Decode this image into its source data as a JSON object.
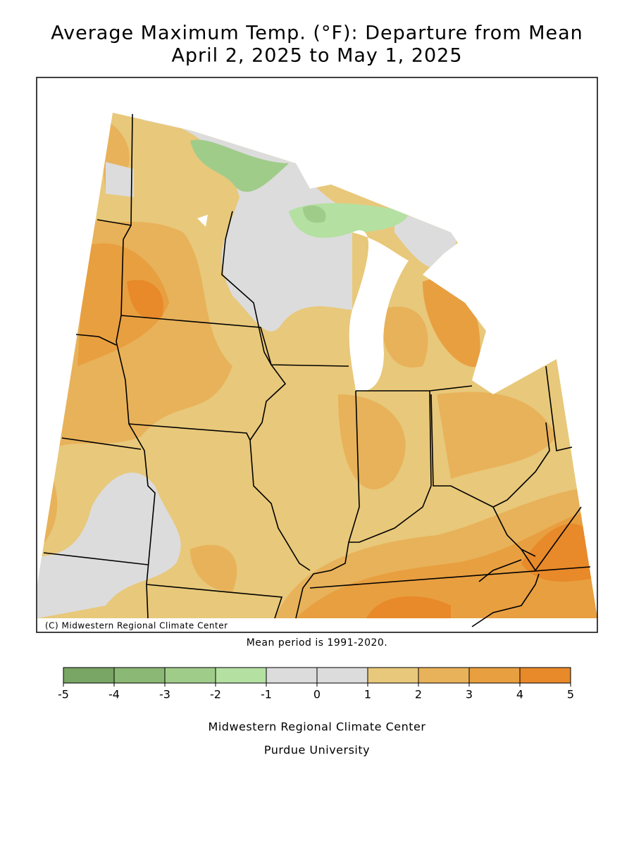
{
  "header": {
    "title_line1": "Average Maximum Temp. (°F): Departure from Mean",
    "title_line2": "April 2, 2025 to May 1, 2025"
  },
  "map": {
    "copyright": "(C) Midwestern Regional Climate Center",
    "note": "Mean period is 1991-2020."
  },
  "legend": {
    "bins": [
      -5,
      -4,
      -3,
      -2,
      -1,
      0,
      1,
      2,
      3,
      4,
      5
    ],
    "colors": [
      "#79a565",
      "#8bb874",
      "#a0cc8a",
      "#b4e0a2",
      "#dcdcdc",
      "#dcdcdc",
      "#e8c87a",
      "#e8b25a",
      "#e89f40",
      "#e8892a"
    ]
  },
  "footer": {
    "line1": "Midwestern Regional Climate Center",
    "line2": "Purdue University"
  }
}
